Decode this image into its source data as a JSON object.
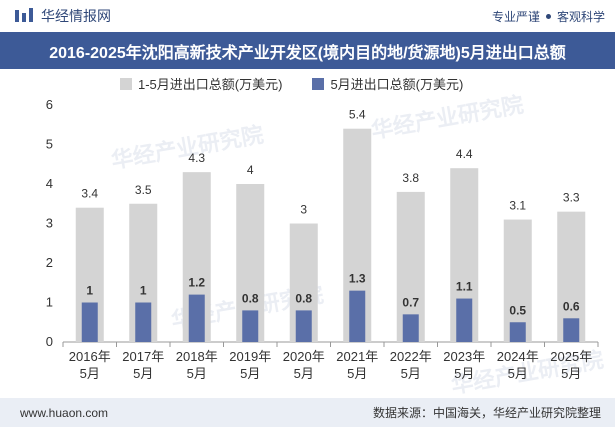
{
  "header": {
    "brand_name": "华经情报网",
    "tagline_left": "专业严谨",
    "tagline_right": "客观科学"
  },
  "footer": {
    "website": "www.huaon.com",
    "source": "数据来源：中国海关，华经产业研究院整理"
  },
  "watermark": {
    "text": "华经产业研究院"
  },
  "colors": {
    "title_bg": "#3d5a97",
    "series_total": "#d4d4d4",
    "series_may": "#5a6fa8"
  },
  "chart_data": {
    "type": "bar",
    "title": "2016-2025年沈阳高新技术产业开发区(境内目的地/货源地)5月进出口总额",
    "categories": [
      [
        "2016年",
        "5月"
      ],
      [
        "2017年",
        "5月"
      ],
      [
        "2018年",
        "5月"
      ],
      [
        "2019年",
        "5月"
      ],
      [
        "2020年",
        "5月"
      ],
      [
        "2021年",
        "5月"
      ],
      [
        "2022年",
        "5月"
      ],
      [
        "2023年",
        "5月"
      ],
      [
        "2024年",
        "5月"
      ],
      [
        "2025年",
        "5月"
      ]
    ],
    "series": [
      {
        "name": "1-5月进出口总额(万美元)",
        "values": [
          3.4,
          3.5,
          4.3,
          4,
          3,
          5.4,
          3.8,
          4.4,
          3.1,
          3.3
        ]
      },
      {
        "name": "5月进出口总额(万美元)",
        "values": [
          1,
          1,
          1.2,
          0.8,
          0.8,
          1.3,
          0.7,
          1.1,
          0.5,
          0.6
        ]
      }
    ],
    "ylim": [
      0,
      6
    ],
    "yticks": [
      0,
      1,
      2,
      3,
      4,
      5,
      6
    ],
    "xlabel": "",
    "ylabel": "",
    "legend": "top-left",
    "grid": false
  }
}
